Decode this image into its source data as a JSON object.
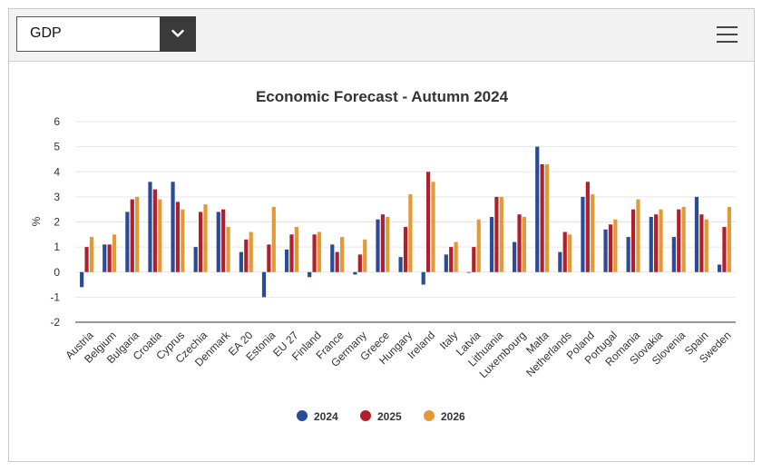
{
  "dropdown": {
    "selected": "GDP"
  },
  "icons": {
    "dropdown": "chevron-down-icon",
    "menu": "hamburger-menu-icon"
  },
  "colors": {
    "2024": "#2b4a97",
    "2025": "#b21f2a",
    "2026": "#e39a35"
  },
  "chart_data": {
    "type": "bar",
    "title": "Economic Forecast - Autumn 2024",
    "ylabel": "%",
    "xlabel": "",
    "ylim": [
      -2,
      6
    ],
    "yticks": [
      "-2",
      "-1",
      "0",
      "1",
      "2",
      "3",
      "4",
      "5",
      "6"
    ],
    "grid": true,
    "legend_position": "bottom",
    "categories": [
      "Austria",
      "Belgium",
      "Bulgaria",
      "Croatia",
      "Cyprus",
      "Czechia",
      "Denmark",
      "EA 20",
      "Estonia",
      "EU 27",
      "Finland",
      "France",
      "Germany",
      "Greece",
      "Hungary",
      "Ireland",
      "Italy",
      "Latvia",
      "Lithuania",
      "Luxembourg",
      "Malta",
      "Netherlands",
      "Poland",
      "Portugal",
      "Romania",
      "Slovakia",
      "Slovenia",
      "Spain",
      "Sweden"
    ],
    "series": [
      {
        "name": "2024",
        "values": [
          -0.6,
          1.1,
          2.4,
          3.6,
          3.6,
          1.0,
          2.4,
          0.8,
          -1.0,
          0.9,
          -0.2,
          1.1,
          -0.1,
          2.1,
          0.6,
          -0.5,
          0.7,
          0.0,
          2.2,
          1.2,
          5.0,
          0.8,
          3.0,
          1.7,
          1.4,
          2.2,
          1.4,
          3.0,
          0.3
        ]
      },
      {
        "name": "2025",
        "values": [
          1.0,
          1.1,
          2.9,
          3.3,
          2.8,
          2.4,
          2.5,
          1.3,
          1.1,
          1.5,
          1.5,
          0.8,
          0.7,
          2.3,
          1.8,
          4.0,
          1.0,
          1.0,
          3.0,
          2.3,
          4.3,
          1.6,
          3.6,
          1.9,
          2.5,
          2.3,
          2.5,
          2.3,
          1.8
        ]
      },
      {
        "name": "2026",
        "values": [
          1.4,
          1.5,
          3.0,
          2.9,
          2.5,
          2.7,
          1.8,
          1.6,
          2.6,
          1.8,
          1.6,
          1.4,
          1.3,
          2.2,
          3.1,
          3.6,
          1.2,
          2.1,
          3.0,
          2.2,
          4.3,
          1.5,
          3.1,
          2.1,
          2.9,
          2.5,
          2.6,
          2.1,
          2.6
        ]
      }
    ]
  }
}
